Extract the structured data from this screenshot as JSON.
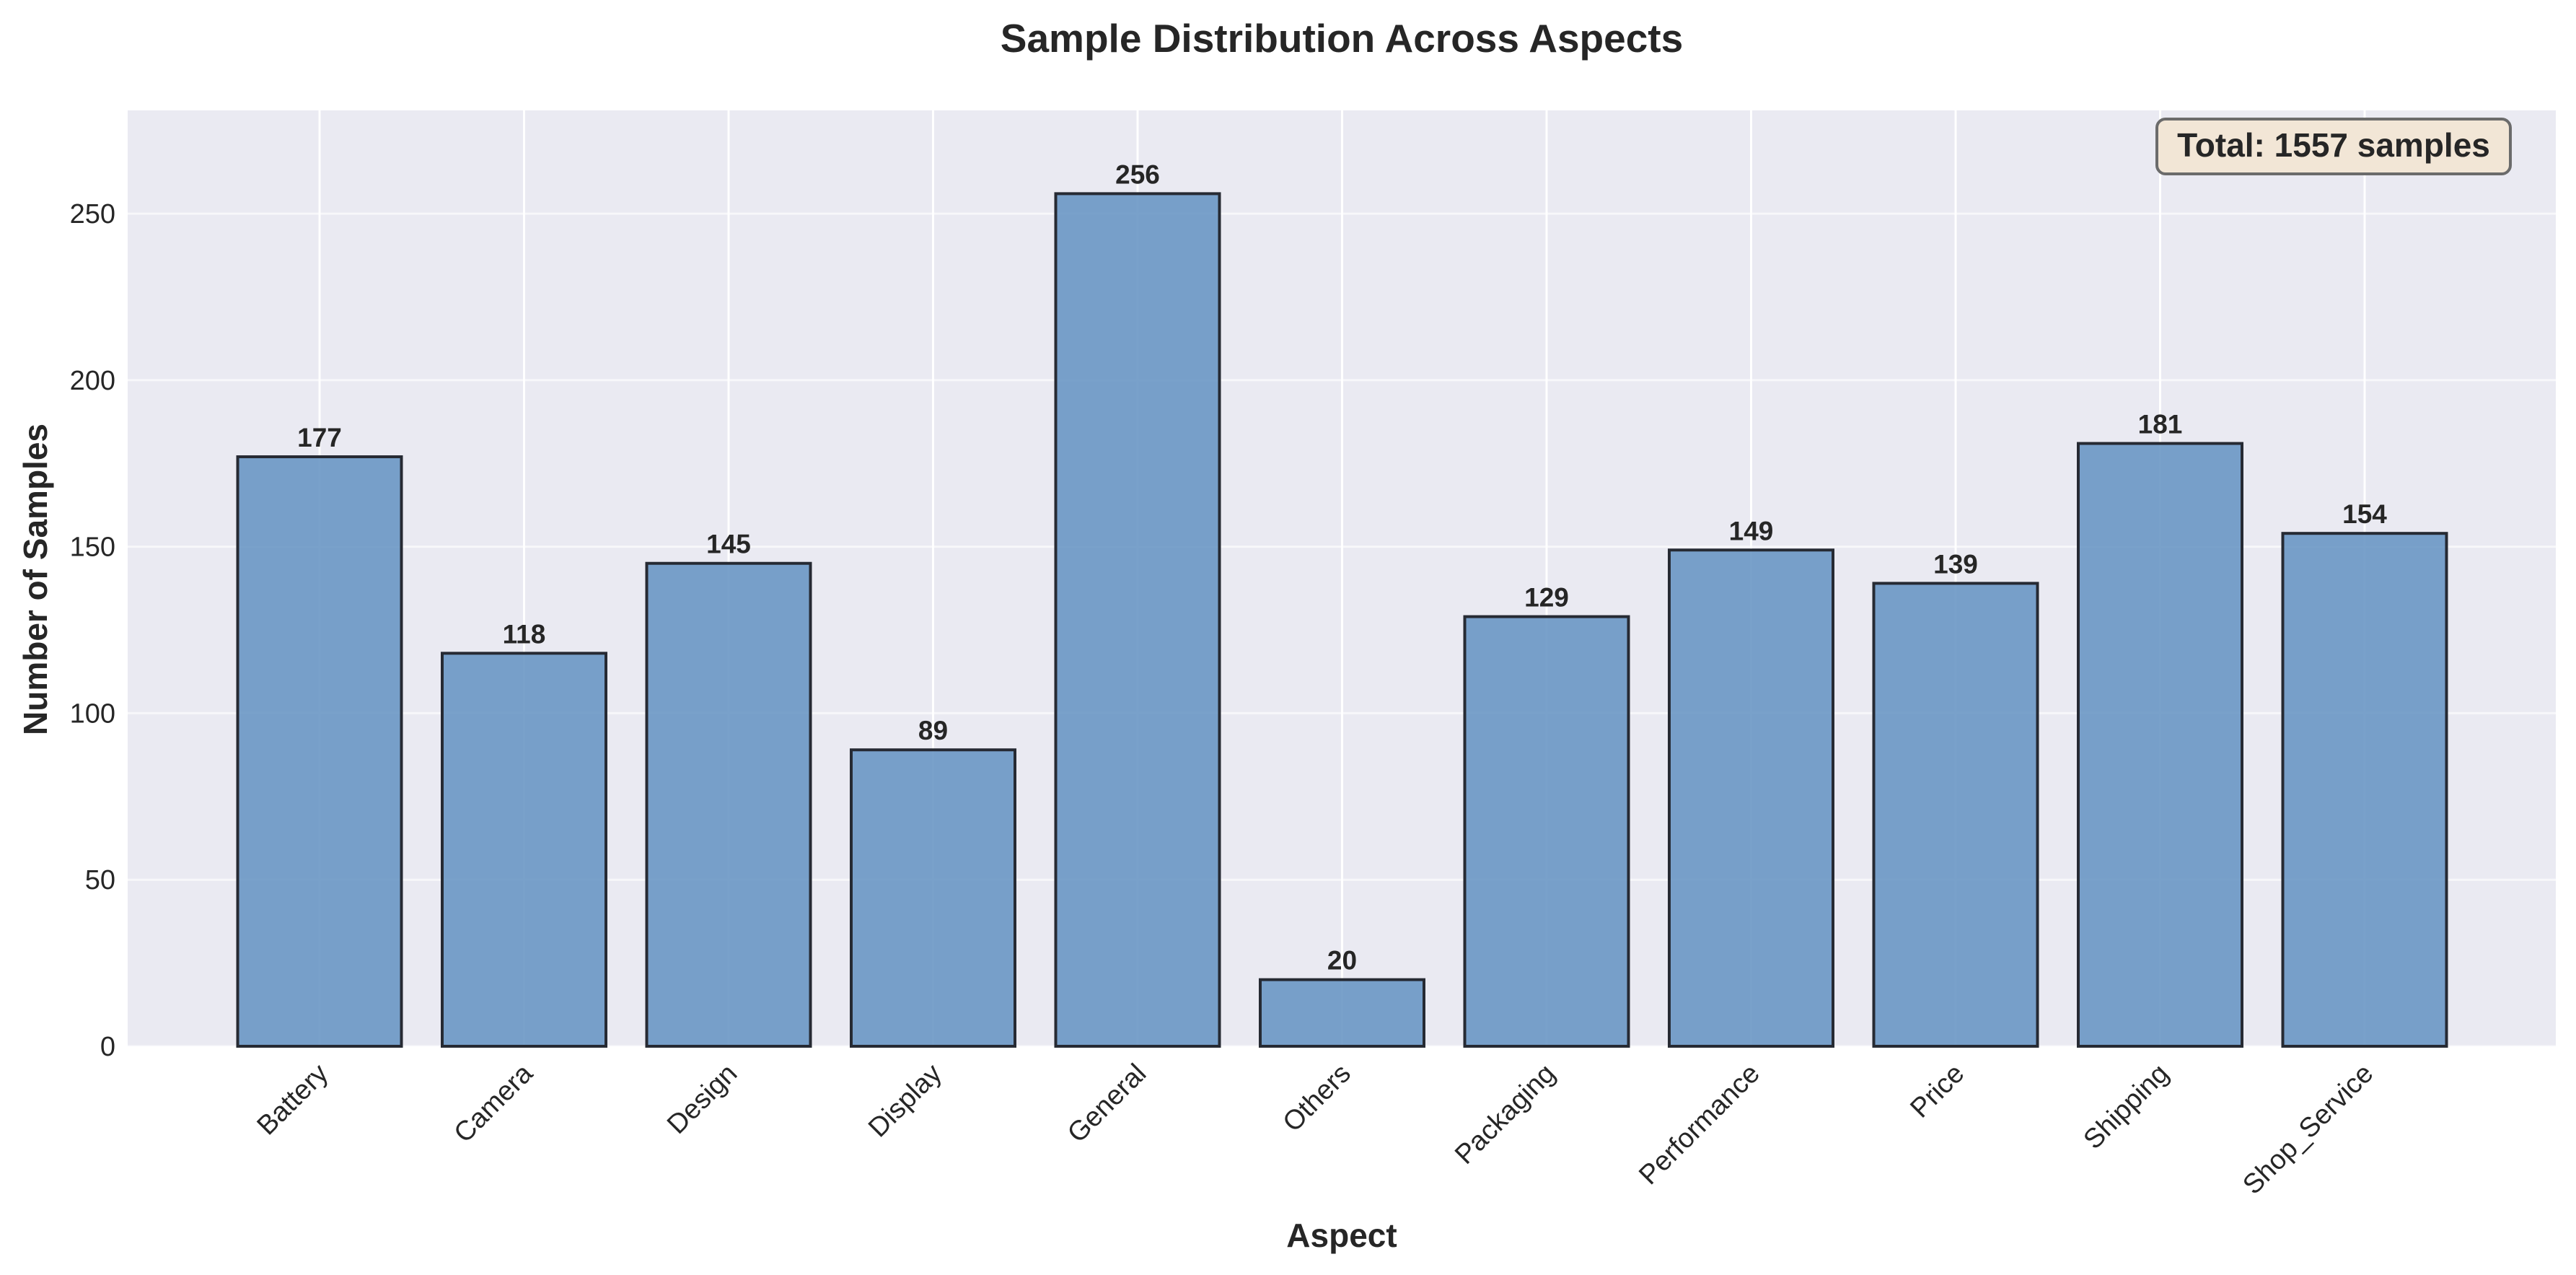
{
  "chart_data": {
    "type": "bar",
    "title": "Sample Distribution Across Aspects",
    "xlabel": "Aspect",
    "ylabel": "Number of Samples",
    "categories": [
      "Battery",
      "Camera",
      "Design",
      "Display",
      "General",
      "Others",
      "Packaging",
      "Performance",
      "Price",
      "Shipping",
      "Shop_Service"
    ],
    "values": [
      177,
      118,
      145,
      89,
      256,
      20,
      129,
      149,
      139,
      181,
      154
    ],
    "value_labels": [
      "177",
      "118",
      "145",
      "89",
      "256",
      "20",
      "129",
      "149",
      "139",
      "181",
      "154"
    ],
    "ylim": [
      0,
      281
    ],
    "yticks": [
      0,
      50,
      100,
      150,
      200,
      250
    ],
    "ytick_labels": [
      "0",
      "50",
      "100",
      "150",
      "200",
      "250"
    ],
    "grid": true,
    "annotation": "Total: 1557 samples",
    "annotation_position": "top-right",
    "colors": {
      "bar_fill": "#6a97c4",
      "bar_edge": "#262a33",
      "plot_background": "#eaeaf2",
      "grid": "#ffffff",
      "annotation_fill": "#f2e6d6",
      "annotation_edge": "#6b6b6b",
      "text": "#262626"
    }
  }
}
